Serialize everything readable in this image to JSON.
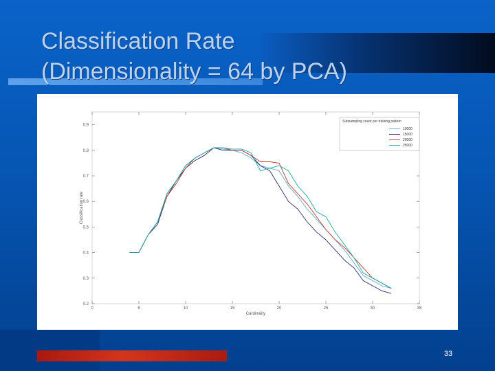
{
  "slide": {
    "title_line1": "Classification Rate",
    "title_line2": "(Dimensionality = 64 by PCA)",
    "page_number": "33"
  },
  "colors": {
    "background": "#0656b4",
    "footer_bar": "#c62a18",
    "series": [
      "#5aa6d6",
      "#2a2a6e",
      "#c0392b",
      "#1aa8a0"
    ]
  },
  "chart_data": {
    "type": "line",
    "title": "",
    "xlabel": "Cardinality",
    "ylabel": "Classification rate",
    "xlim": [
      0,
      35
    ],
    "ylim": [
      0.2,
      0.95
    ],
    "xticks": [
      0,
      5,
      10,
      15,
      20,
      25,
      30,
      35
    ],
    "yticks": [
      0.2,
      0.3,
      0.4,
      0.5,
      0.6,
      0.7,
      0.8,
      0.9
    ],
    "xtick_labels": [
      "0",
      "5",
      "10",
      "15",
      "20",
      "25",
      "30",
      "35"
    ],
    "ytick_labels": [
      "0.2",
      "0.3",
      "0.4",
      "0.5",
      "0.6",
      "0.7",
      "0.8",
      "0.9"
    ],
    "grid": false,
    "legend_position": "top-right",
    "legend_title": "Subsampling count per training pattern",
    "x": [
      4,
      5,
      6,
      7,
      8,
      9,
      10,
      11,
      12,
      13,
      14,
      15,
      16,
      17,
      18,
      19,
      20,
      21,
      22,
      23,
      24,
      25,
      26,
      27,
      28,
      29,
      30,
      31,
      32
    ],
    "series": [
      {
        "name": "10000",
        "values": [
          0.4,
          0.4,
          0.47,
          0.52,
          0.63,
          0.68,
          0.74,
          0.77,
          0.79,
          0.81,
          0.805,
          0.8,
          0.79,
          0.77,
          0.74,
          0.73,
          0.72,
          0.66,
          0.62,
          0.57,
          0.53,
          0.49,
          0.45,
          0.41,
          0.36,
          0.31,
          0.29,
          0.27,
          0.26
        ]
      },
      {
        "name": "15000",
        "values": [
          0.4,
          0.4,
          0.47,
          0.51,
          0.62,
          0.68,
          0.73,
          0.76,
          0.78,
          0.81,
          0.8,
          0.8,
          0.8,
          0.78,
          0.74,
          0.72,
          0.66,
          0.6,
          0.57,
          0.52,
          0.48,
          0.45,
          0.41,
          0.37,
          0.34,
          0.29,
          0.27,
          0.25,
          0.24
        ]
      },
      {
        "name": "20000",
        "values": [
          0.4,
          0.4,
          0.47,
          0.52,
          0.62,
          0.67,
          0.73,
          0.77,
          0.79,
          0.81,
          0.81,
          0.8,
          0.8,
          0.78,
          0.755,
          0.755,
          0.75,
          0.67,
          0.63,
          0.59,
          0.54,
          0.49,
          0.45,
          0.42,
          0.38,
          0.34,
          0.3,
          0.28,
          0.26
        ]
      },
      {
        "name": "25000",
        "values": [
          0.4,
          0.4,
          0.47,
          0.52,
          0.63,
          0.68,
          0.74,
          0.77,
          0.79,
          0.81,
          0.81,
          0.805,
          0.805,
          0.79,
          0.72,
          0.73,
          0.74,
          0.72,
          0.66,
          0.62,
          0.56,
          0.54,
          0.48,
          0.43,
          0.38,
          0.32,
          0.3,
          0.28,
          0.26
        ]
      }
    ]
  }
}
